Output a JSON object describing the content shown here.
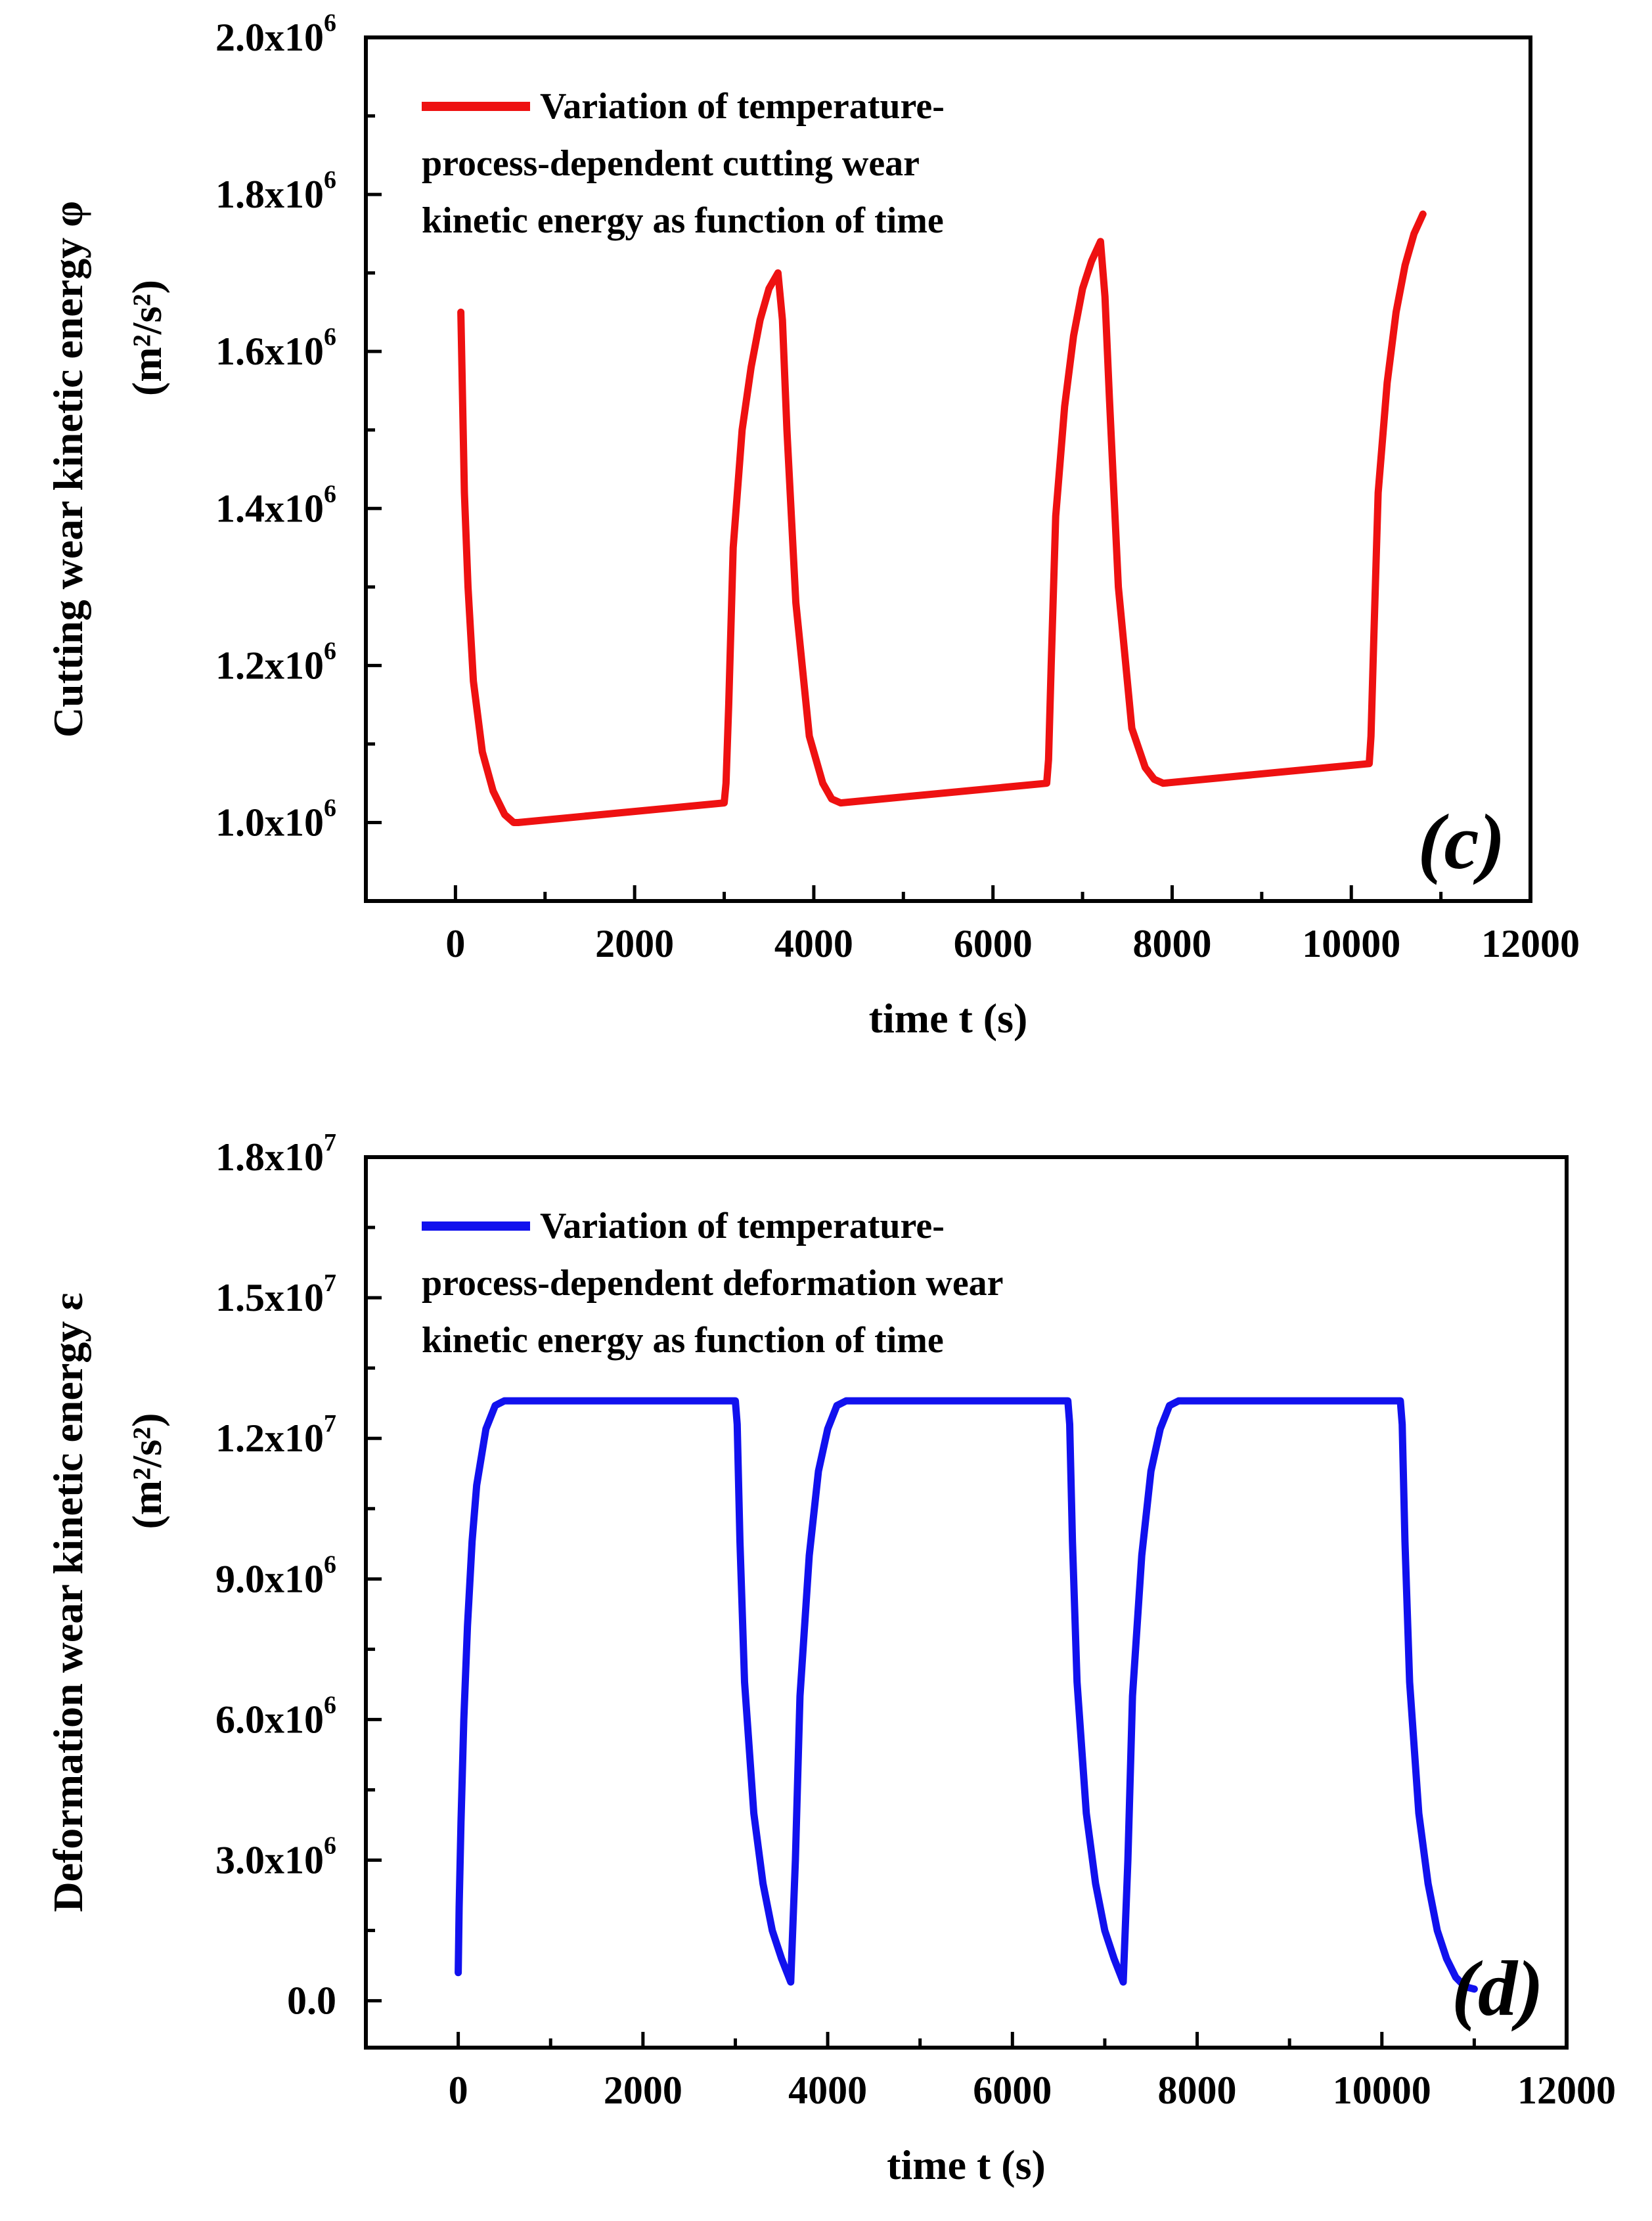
{
  "chart_data": [
    {
      "type": "line",
      "panel_label": "(c)",
      "xlabel": "time t (s)",
      "ylabel_main": "Cutting wear kinetic energy φ",
      "ylabel_unit": "(m²/s²)",
      "xlim": [
        -1000,
        12000
      ],
      "ylim": [
        900000,
        2000000
      ],
      "x_ticks": [
        0,
        2000,
        4000,
        6000,
        8000,
        10000,
        12000
      ],
      "y_ticks": [
        {
          "value": 1000000,
          "mantissa": "1.0x10",
          "exponent": "6"
        },
        {
          "value": 1200000,
          "mantissa": "1.2x10",
          "exponent": "6"
        },
        {
          "value": 1400000,
          "mantissa": "1.4x10",
          "exponent": "6"
        },
        {
          "value": 1600000,
          "mantissa": "1.6x10",
          "exponent": "6"
        },
        {
          "value": 1800000,
          "mantissa": "1.8x10",
          "exponent": "6"
        },
        {
          "value": 2000000,
          "mantissa": "2.0x10",
          "exponent": "6"
        }
      ],
      "legend": [
        "Variation of temperature-",
        "process-dependent cutting wear",
        "kinetic energy as function of time"
      ],
      "legend_position": "top-left",
      "color": "#ee1111",
      "series": [
        {
          "name": "Cutting wear kinetic energy",
          "x": [
            60,
            100,
            140,
            200,
            300,
            420,
            550,
            650,
            700,
            3000,
            3020,
            3050,
            3100,
            3200,
            3300,
            3400,
            3500,
            3600,
            3650,
            3700,
            3800,
            3950,
            4100,
            4200,
            4300,
            6600,
            6620,
            6650,
            6700,
            6800,
            6900,
            7000,
            7100,
            7200,
            7250,
            7300,
            7400,
            7550,
            7700,
            7800,
            7900,
            10200,
            10220,
            10250,
            10300,
            10400,
            10500,
            10600,
            10700,
            10800
          ],
          "values": [
            1650000,
            1420000,
            1300000,
            1180000,
            1090000,
            1040000,
            1010000,
            1000000,
            1000000,
            1025000,
            1050000,
            1150000,
            1350000,
            1500000,
            1580000,
            1640000,
            1680000,
            1700000,
            1640000,
            1500000,
            1280000,
            1110000,
            1050000,
            1030000,
            1025000,
            1050000,
            1080000,
            1200000,
            1390000,
            1530000,
            1620000,
            1680000,
            1715000,
            1740000,
            1670000,
            1540000,
            1300000,
            1120000,
            1070000,
            1055000,
            1050000,
            1075000,
            1110000,
            1230000,
            1420000,
            1560000,
            1650000,
            1710000,
            1750000,
            1775000
          ]
        }
      ]
    },
    {
      "type": "line",
      "panel_label": "(d)",
      "xlabel": "time t (s)",
      "ylabel_main": "Deformation wear kinetic energy ε",
      "ylabel_unit": "(m²/s²)",
      "xlim": [
        -1000,
        12000
      ],
      "ylim": [
        -1000000,
        18000000
      ],
      "x_ticks": [
        0,
        2000,
        4000,
        6000,
        8000,
        10000,
        12000
      ],
      "y_ticks": [
        {
          "value": 0,
          "mantissa": "0.0",
          "exponent": ""
        },
        {
          "value": 3000000,
          "mantissa": "3.0x10",
          "exponent": "6"
        },
        {
          "value": 6000000,
          "mantissa": "6.0x10",
          "exponent": "6"
        },
        {
          "value": 9000000,
          "mantissa": "9.0x10",
          "exponent": "6"
        },
        {
          "value": 12000000,
          "mantissa": "1.2x10",
          "exponent": "7"
        },
        {
          "value": 15000000,
          "mantissa": "1.5x10",
          "exponent": "7"
        },
        {
          "value": 18000000,
          "mantissa": "1.8x10",
          "exponent": "7"
        }
      ],
      "legend": [
        "Variation of temperature-",
        "process-dependent deformation wear",
        "kinetic energy as function of time"
      ],
      "legend_position": "top-left",
      "color": "#1111ee",
      "series": [
        {
          "name": "Deformation wear kinetic energy",
          "x": [
            0,
            10,
            30,
            60,
            100,
            150,
            200,
            300,
            400,
            500,
            600,
            3000,
            3020,
            3050,
            3100,
            3200,
            3300,
            3400,
            3500,
            3600,
            3650,
            3700,
            3800,
            3900,
            4000,
            4100,
            4200,
            6600,
            6620,
            6650,
            6700,
            6800,
            6900,
            7000,
            7100,
            7200,
            7250,
            7300,
            7400,
            7500,
            7600,
            7700,
            7800,
            10200,
            10220,
            10250,
            10300,
            10400,
            10500,
            10600,
            10700,
            10800,
            10900,
            11000
          ],
          "values": [
            600000,
            2000000,
            3800000,
            6000000,
            8000000,
            9800000,
            11000000,
            12200000,
            12700000,
            12800000,
            12800000,
            12800000,
            12300000,
            9800000,
            6800000,
            4000000,
            2500000,
            1500000,
            900000,
            400000,
            3000000,
            6500000,
            9500000,
            11300000,
            12200000,
            12700000,
            12800000,
            12800000,
            12300000,
            9800000,
            6800000,
            4000000,
            2500000,
            1500000,
            900000,
            400000,
            3000000,
            6500000,
            9500000,
            11300000,
            12200000,
            12700000,
            12800000,
            12800000,
            12300000,
            9800000,
            6800000,
            4000000,
            2500000,
            1500000,
            900000,
            500000,
            300000,
            250000
          ]
        }
      ]
    }
  ]
}
